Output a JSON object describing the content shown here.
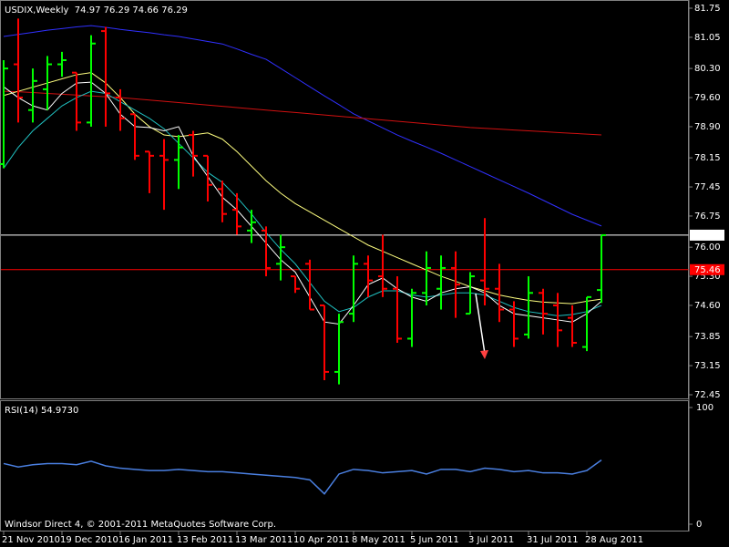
{
  "chart_data": [
    {
      "type": "ohlc",
      "title": "USDIX,Weekly  74.97 76.29 74.66 76.29",
      "categories": [
        "21 Nov 2010",
        null,
        null,
        null,
        "19 Dec 2010",
        null,
        null,
        null,
        "16 Jan 2011",
        null,
        null,
        null,
        "13 Feb 2011",
        null,
        null,
        null,
        "13 Mar 2011",
        null,
        null,
        null,
        "10 Apr 2011",
        null,
        null,
        null,
        "8 May 2011",
        null,
        null,
        null,
        "5 Jun 2011",
        null,
        null,
        null,
        "3 Jul 2011",
        null,
        null,
        null,
        "31 Jul 2011",
        null,
        null,
        null,
        "28 Aug 2011",
        null
      ],
      "open": [
        78.0,
        80.4,
        79.3,
        79.8,
        80.4,
        80.2,
        79.0,
        81.2,
        79.6,
        79.2,
        78.3,
        78.2,
        78.1,
        78.7,
        78.2,
        77.4,
        76.9,
        76.4,
        76.4,
        75.6,
        75.3,
        75.6,
        74.6,
        73.0,
        74.4,
        75.6,
        75.3,
        75.0,
        73.8,
        74.9,
        75.0,
        75.5,
        74.4,
        75.2,
        75.0,
        74.5,
        73.9,
        74.9,
        74.6,
        74.3,
        73.6,
        74.97
      ],
      "high": [
        80.5,
        81.5,
        80.3,
        80.6,
        80.7,
        80.2,
        81.1,
        81.3,
        79.8,
        79.2,
        78.3,
        78.6,
        78.7,
        78.8,
        78.2,
        77.6,
        77.3,
        76.9,
        76.5,
        76.3,
        75.3,
        75.7,
        74.6,
        74.4,
        75.8,
        75.8,
        76.3,
        75.3,
        75.0,
        75.9,
        75.8,
        75.9,
        75.4,
        76.7,
        75.6,
        74.7,
        75.3,
        75.0,
        74.9,
        74.6,
        74.8,
        76.29
      ],
      "low": [
        77.9,
        79.0,
        79.0,
        79.3,
        80.1,
        78.8,
        78.9,
        78.9,
        78.8,
        78.1,
        77.3,
        76.9,
        77.4,
        77.7,
        77.1,
        76.6,
        76.3,
        76.1,
        75.3,
        75.2,
        74.9,
        74.5,
        72.8,
        72.7,
        74.2,
        74.8,
        74.8,
        73.7,
        73.6,
        74.6,
        74.5,
        74.3,
        74.4,
        74.6,
        74.2,
        73.6,
        73.8,
        73.9,
        73.6,
        73.6,
        73.5,
        74.66
      ],
      "close": [
        80.3,
        79.6,
        80.0,
        80.4,
        80.5,
        79.0,
        80.9,
        79.7,
        79.1,
        78.2,
        78.2,
        78.1,
        78.4,
        78.2,
        77.5,
        76.8,
        76.5,
        76.6,
        75.5,
        76.0,
        75.0,
        74.5,
        73.0,
        74.2,
        75.6,
        75.2,
        75.0,
        73.8,
        74.9,
        75.5,
        75.5,
        75.1,
        75.3,
        75.0,
        74.5,
        73.8,
        74.9,
        74.4,
        74.0,
        73.7,
        74.8,
        76.29
      ],
      "up_color": "#00ff00",
      "down_color": "#ff0000",
      "lines": [
        {
          "color": "#3030ff",
          "values": [
            81.07,
            81.12,
            81.17,
            81.22,
            81.26,
            81.3,
            81.33,
            81.29,
            81.24,
            81.2,
            81.16,
            81.11,
            81.07,
            81.01,
            80.95,
            80.89,
            80.77,
            80.64,
            80.52,
            80.3,
            80.08,
            79.86,
            79.64,
            79.43,
            79.21,
            79.04,
            78.87,
            78.7,
            78.55,
            78.41,
            78.26,
            78.1,
            77.94,
            77.78,
            77.62,
            77.46,
            77.3,
            77.13,
            76.96,
            76.79,
            76.65,
            76.51
          ]
        },
        {
          "color": "#d01010",
          "values": [
            79.75,
            79.74,
            79.72,
            79.7,
            79.68,
            79.66,
            79.64,
            79.62,
            79.6,
            79.57,
            79.54,
            79.51,
            79.48,
            79.45,
            79.42,
            79.39,
            79.36,
            79.33,
            79.3,
            79.27,
            79.24,
            79.21,
            79.18,
            79.15,
            79.12,
            79.09,
            79.06,
            79.03,
            79.0,
            78.97,
            78.94,
            78.91,
            78.88,
            78.86,
            78.84,
            78.82,
            78.8,
            78.78,
            78.76,
            78.74,
            78.72,
            78.7
          ]
        },
        {
          "color": "#ffff80",
          "values": [
            79.65,
            79.75,
            79.85,
            79.95,
            80.05,
            80.15,
            80.2,
            79.95,
            79.6,
            79.2,
            78.9,
            78.7,
            78.66,
            78.7,
            78.75,
            78.6,
            78.3,
            77.95,
            77.6,
            77.3,
            77.05,
            76.85,
            76.65,
            76.45,
            76.25,
            76.05,
            75.9,
            75.75,
            75.6,
            75.45,
            75.3,
            75.18,
            75.05,
            74.95,
            74.85,
            74.78,
            74.72,
            74.68,
            74.66,
            74.64,
            74.7,
            74.75
          ]
        },
        {
          "color": "#20c0c0",
          "values": [
            77.9,
            78.4,
            78.8,
            79.1,
            79.4,
            79.6,
            79.75,
            79.7,
            79.5,
            79.3,
            79.1,
            78.85,
            78.5,
            78.15,
            77.8,
            77.56,
            77.2,
            76.8,
            76.35,
            75.95,
            75.6,
            75.15,
            74.7,
            74.45,
            74.55,
            74.8,
            74.95,
            74.95,
            74.85,
            74.8,
            74.85,
            74.9,
            74.9,
            74.85,
            74.7,
            74.55,
            74.45,
            74.4,
            74.35,
            74.38,
            74.45,
            74.6
          ]
        },
        {
          "color": "#ffffff",
          "values": [
            79.86,
            79.6,
            79.4,
            79.3,
            79.7,
            79.95,
            79.97,
            79.7,
            79.2,
            78.9,
            78.88,
            78.8,
            78.9,
            78.2,
            77.7,
            77.2,
            76.9,
            76.5,
            76.1,
            75.7,
            75.4,
            74.8,
            74.2,
            74.15,
            74.6,
            75.1,
            75.26,
            75.0,
            74.8,
            74.7,
            74.9,
            75.0,
            75.05,
            74.9,
            74.6,
            74.4,
            74.35,
            74.3,
            74.25,
            74.2,
            74.4,
            74.7
          ]
        }
      ],
      "levels": [
        {
          "value": 76.29,
          "color": "#ffffff",
          "text_color": "#000000"
        },
        {
          "value": 75.46,
          "color": "#ff0000",
          "text_color": "#ffffff"
        }
      ],
      "ylim": [
        72.45,
        81.75
      ],
      "yticks": [
        81.75,
        81.05,
        {
          "value": 80.3,
          "label": "80.30"
        },
        {
          "value": 79.6,
          "label": "79.60"
        },
        {
          "value": 78.9,
          "label": "78.90"
        },
        78.15,
        77.45,
        76.75,
        {
          "value": 76,
          "label": "76.00"
        },
        {
          "value": 75.3,
          "label": "75.30"
        },
        {
          "value": 74.6,
          "label": "74.60"
        },
        73.85,
        73.15,
        72.45
      ]
    },
    {
      "type": "line",
      "title": "RSI(14) 54.9730",
      "values": [
        52,
        49,
        51,
        52,
        52,
        51,
        54,
        50,
        48,
        47,
        46,
        46,
        47,
        46,
        45,
        45,
        44,
        43,
        42,
        41,
        40,
        38,
        26,
        43,
        47,
        46,
        44,
        45,
        46,
        43,
        47,
        47,
        45,
        48,
        47,
        45,
        46,
        44,
        44,
        43,
        46,
        54.973
      ],
      "color": "#4a7fe0",
      "ylim": [
        0,
        100
      ],
      "yticks": [
        0,
        100
      ]
    }
  ],
  "footer": "Windsor Direct 4, © 2001-2011 MetaQuotes Software Corp."
}
